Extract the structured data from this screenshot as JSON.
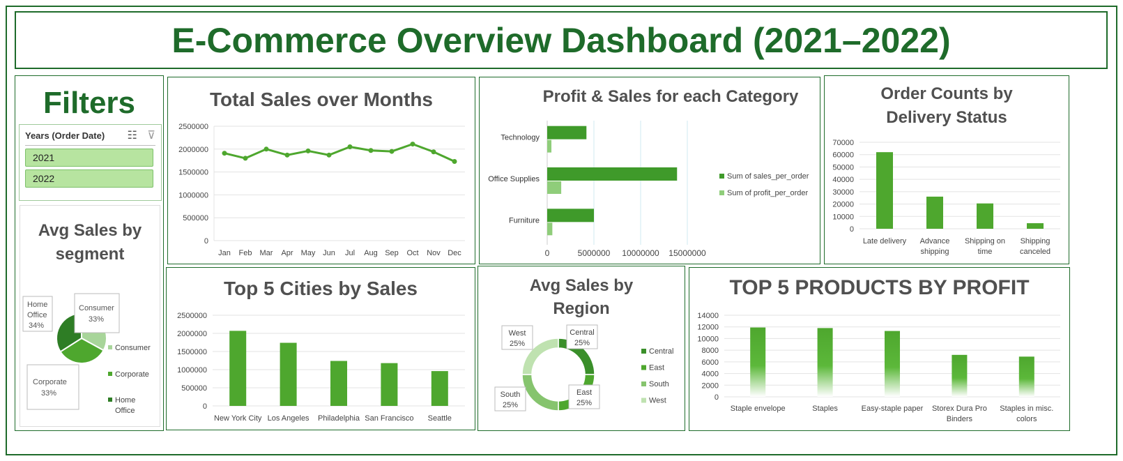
{
  "title": "E-Commerce Overview Dashboard (2021–2022)",
  "filters": {
    "title": "Filters",
    "slicer_header": "Years (Order Date)",
    "options": [
      "2021",
      "2022"
    ]
  },
  "colors": {
    "dark_green": "#1e6b2a",
    "bar": "#4ea72e",
    "light": "#b7e4a0"
  },
  "chart_data": [
    {
      "type": "line",
      "title": "Total Sales over Months",
      "categories": [
        "Jan",
        "Feb",
        "Mar",
        "Apr",
        "May",
        "Jun",
        "Jul",
        "Aug",
        "Sep",
        "Oct",
        "Nov",
        "Dec"
      ],
      "values": [
        1910000,
        1800000,
        2000000,
        1870000,
        1960000,
        1870000,
        2050000,
        1970000,
        1950000,
        2110000,
        1940000,
        1730000
      ],
      "ylim": [
        0,
        2500000
      ],
      "yticks": [
        "2500000",
        "2000000",
        "1500000",
        "1000000",
        "500000",
        "0"
      ]
    },
    {
      "type": "bar",
      "orientation": "horizontal",
      "title": "Profit & Sales for each Category",
      "categories": [
        "Technology",
        "Office Supplies",
        "Furniture"
      ],
      "series": [
        {
          "name": "Sum of sales_per_order",
          "values": [
            4200000,
            13900000,
            5000000
          ]
        },
        {
          "name": "Sum of profit_per_order",
          "values": [
            450000,
            1500000,
            550000
          ]
        }
      ],
      "xlim": [
        0,
        15000000
      ],
      "xticks": [
        "0",
        "5000000",
        "10000000",
        "15000000"
      ]
    },
    {
      "type": "bar",
      "title": "Order Counts by Delivery Status",
      "title_lines": [
        "Order Counts by",
        "Delivery Status"
      ],
      "categories": [
        "Late delivery",
        "Advance shipping",
        "Shipping on time",
        "Shipping canceled"
      ],
      "category_lines": [
        [
          "Late delivery"
        ],
        [
          "Advance",
          "shipping"
        ],
        [
          "Shipping on",
          "time"
        ],
        [
          "Shipping",
          "canceled"
        ]
      ],
      "values": [
        62000,
        26000,
        20500,
        4500
      ],
      "ylim": [
        0,
        70000
      ],
      "yticks": [
        "70000",
        "60000",
        "50000",
        "40000",
        "30000",
        "20000",
        "10000",
        "0"
      ]
    },
    {
      "type": "pie",
      "title": "Avg Sales by segment",
      "title_lines": [
        "Avg Sales by",
        "segment"
      ],
      "slices": [
        {
          "label": "Consumer",
          "value": 33,
          "pct": "33%",
          "color": "#a8d59a"
        },
        {
          "label": "Corporate",
          "value": 33,
          "pct": "33%",
          "color": "#4ea72e"
        },
        {
          "label": "Home Office",
          "value": 34,
          "pct": "34%",
          "color": "#2e7d25"
        }
      ],
      "legend": [
        "Consumer",
        "Corporate",
        "Home Office"
      ],
      "legend_lines": [
        [
          "Consumer"
        ],
        [
          "Corporate"
        ],
        [
          "Home",
          "Office"
        ]
      ],
      "callouts": [
        [
          "Home",
          "Office",
          "34%"
        ],
        [
          "Consumer",
          "33%"
        ],
        [
          "Corporate",
          "33%"
        ]
      ]
    },
    {
      "type": "bar",
      "title": "Top 5 Cities by Sales",
      "categories": [
        "New York City",
        "Los Angeles",
        "Philadelphia",
        "San Francisco",
        "Seattle"
      ],
      "values": [
        2070000,
        1740000,
        1240000,
        1180000,
        960000
      ],
      "ylim": [
        0,
        2500000
      ],
      "yticks": [
        "2500000",
        "2000000",
        "1500000",
        "1000000",
        "500000",
        "0"
      ]
    },
    {
      "type": "pie",
      "subtype": "doughnut",
      "title": "Avg Sales by Region",
      "title_lines": [
        "Avg Sales by",
        "Region"
      ],
      "slices": [
        {
          "label": "Central",
          "value": 25,
          "pct": "25%",
          "color": "#3a8f2a"
        },
        {
          "label": "East",
          "value": 25,
          "pct": "25%",
          "color": "#4ea72e"
        },
        {
          "label": "South",
          "value": 25,
          "pct": "25%",
          "color": "#86c46e"
        },
        {
          "label": "West",
          "value": 25,
          "pct": "25%",
          "color": "#bfe2b0"
        }
      ],
      "legend": [
        "Central",
        "East",
        "South",
        "West"
      ]
    },
    {
      "type": "bar",
      "title": "TOP 5 PRODUCTS BY PROFIT",
      "categories": [
        "Staple envelope",
        "Staples",
        "Easy-staple paper",
        "Storex Dura Pro Binders",
        "Staples in misc. colors"
      ],
      "category_lines": [
        [
          "Staple envelope"
        ],
        [
          "Staples"
        ],
        [
          "Easy-staple paper"
        ],
        [
          "Storex Dura Pro",
          "Binders"
        ],
        [
          "Staples in misc.",
          "colors"
        ]
      ],
      "values": [
        11900,
        11800,
        11300,
        7200,
        6900
      ],
      "ylim": [
        0,
        14000
      ],
      "yticks": [
        "14000",
        "12000",
        "10000",
        "8000",
        "6000",
        "4000",
        "2000",
        "0"
      ]
    }
  ]
}
